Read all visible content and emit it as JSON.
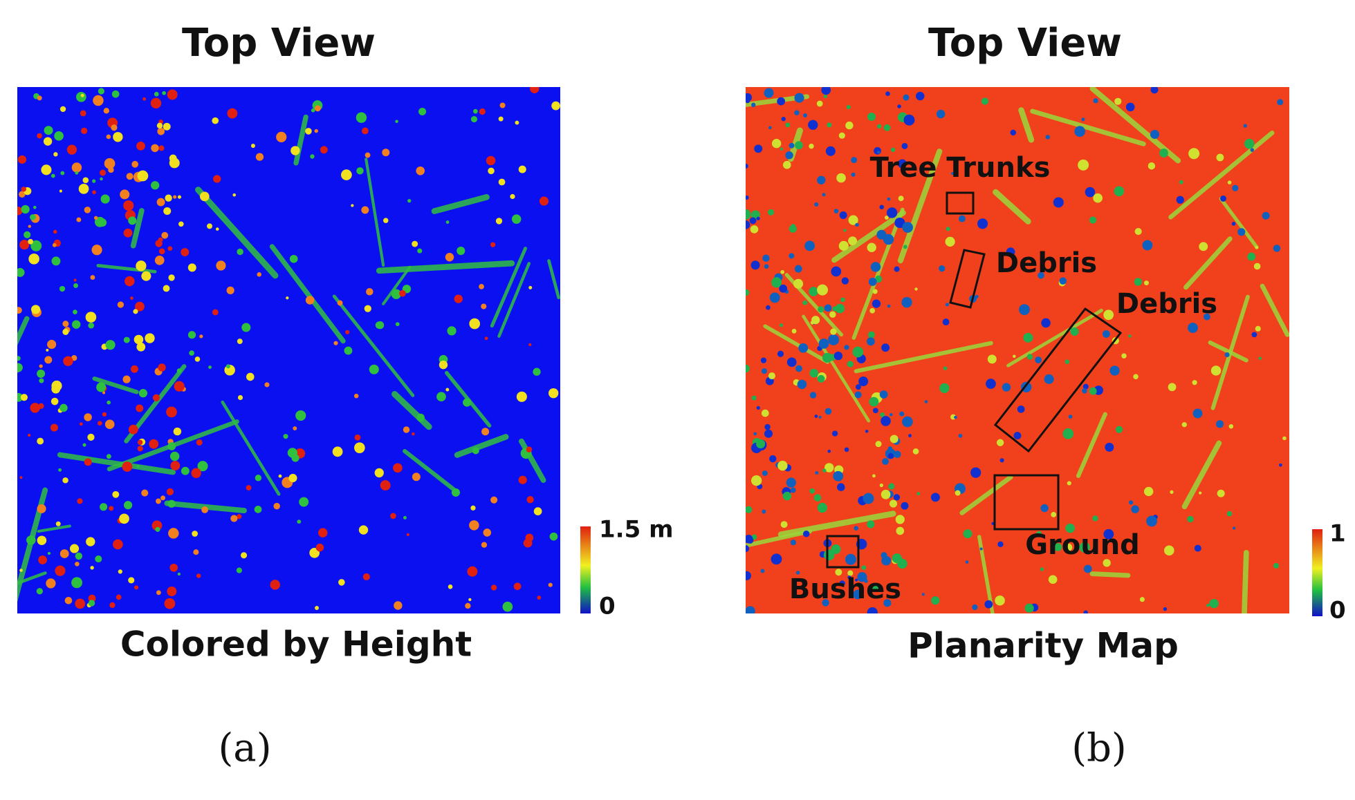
{
  "panels": [
    {
      "title": "Top View",
      "caption": "Colored by Height",
      "colorbar": {
        "max": "1.5 m",
        "min": "0"
      },
      "label": "(a)"
    },
    {
      "title": "Top View",
      "caption": "Planarity Map",
      "colorbar": {
        "max": "1",
        "min": "0"
      },
      "label": "(b)",
      "annotations": [
        "Tree Trunks",
        "Debris",
        "Debris",
        "Ground",
        "Bushes"
      ]
    }
  ]
}
